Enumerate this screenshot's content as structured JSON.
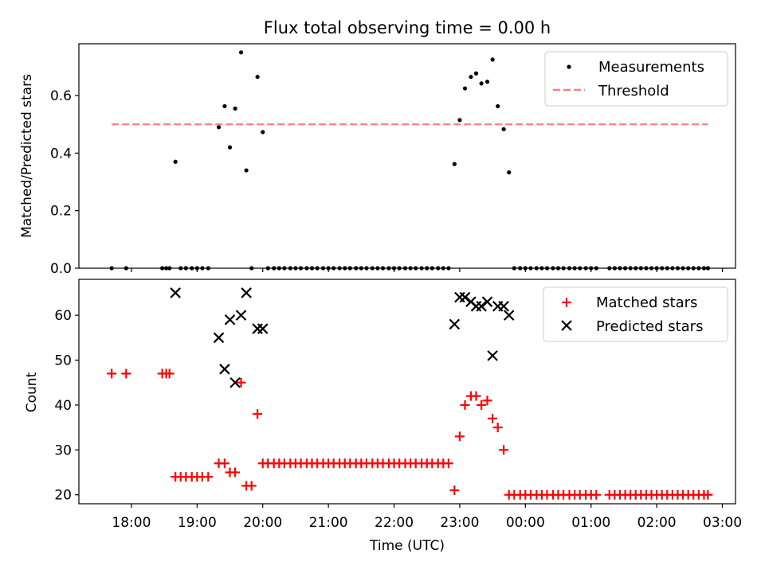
{
  "chart_data": [
    {
      "type": "scatter",
      "title": "Flux total observing time = 0.00 h",
      "xlabel": "",
      "ylabel": "Matched/Predicted stars",
      "ylim": [
        0,
        0.78
      ],
      "yticks": [
        0.0,
        0.2,
        0.4,
        0.6
      ],
      "yticklabels": [
        "0.0",
        "0.2",
        "0.4",
        "0.6"
      ],
      "legend_position": "top-right",
      "series": [
        {
          "name": "Measurements",
          "marker": "dot",
          "color": "#000000",
          "x": [
            17.7,
            17.92,
            18.47,
            18.53,
            18.58,
            18.67,
            18.75,
            18.83,
            18.92,
            19.0,
            19.08,
            19.17,
            19.33,
            19.42,
            19.5,
            19.58,
            19.67,
            19.75,
            19.83,
            19.92,
            20.0,
            20.08,
            20.17,
            20.25,
            20.33,
            20.42,
            20.5,
            20.58,
            20.67,
            20.75,
            20.83,
            20.92,
            21.0,
            21.08,
            21.17,
            21.25,
            21.33,
            21.42,
            21.5,
            21.58,
            21.67,
            21.75,
            21.83,
            21.92,
            22.0,
            22.08,
            22.17,
            22.25,
            22.33,
            22.42,
            22.5,
            22.58,
            22.67,
            22.75,
            22.83,
            22.92,
            23.0,
            23.08,
            23.17,
            23.25,
            23.33,
            23.42,
            23.5,
            23.58,
            23.67,
            23.75,
            23.83,
            23.92,
            24.0,
            24.08,
            24.17,
            24.25,
            24.33,
            24.42,
            24.5,
            24.58,
            24.67,
            24.75,
            24.83,
            24.92,
            25.0,
            25.08,
            25.28,
            25.36,
            25.44,
            25.52,
            25.6,
            25.68,
            25.76,
            25.84,
            25.92,
            26.0,
            26.08,
            26.16,
            26.24,
            26.32,
            26.4,
            26.48,
            26.56,
            26.64,
            26.72,
            26.78
          ],
          "y": [
            0.0,
            0.0,
            0.0,
            0.0,
            0.0,
            0.37,
            0.0,
            0.0,
            0.0,
            0.0,
            0.0,
            0.0,
            0.49,
            0.563,
            0.42,
            0.555,
            0.75,
            0.34,
            0.0,
            0.665,
            0.473,
            0.0,
            0.0,
            0.0,
            0.0,
            0.0,
            0.0,
            0.0,
            0.0,
            0.0,
            0.0,
            0.0,
            0.0,
            0.0,
            0.0,
            0.0,
            0.0,
            0.0,
            0.0,
            0.0,
            0.0,
            0.0,
            0.0,
            0.0,
            0.0,
            0.0,
            0.0,
            0.0,
            0.0,
            0.0,
            0.0,
            0.0,
            0.0,
            0.0,
            0.0,
            0.362,
            0.515,
            0.625,
            0.665,
            0.677,
            0.642,
            0.648,
            0.725,
            0.563,
            0.483,
            0.333,
            0.0,
            0.0,
            0.0,
            0.0,
            0.0,
            0.0,
            0.0,
            0.0,
            0.0,
            0.0,
            0.0,
            0.0,
            0.0,
            0.0,
            0.0,
            0.0,
            0.0,
            0.0,
            0.0,
            0.0,
            0.0,
            0.0,
            0.0,
            0.0,
            0.0,
            0.0,
            0.0,
            0.0,
            0.0,
            0.0,
            0.0,
            0.0,
            0.0,
            0.0,
            0.0,
            0.0
          ]
        },
        {
          "name": "Threshold",
          "marker": "dashed-line",
          "color": "#ff7f7f",
          "x": [
            17.7,
            26.78
          ],
          "y": [
            0.5,
            0.5
          ]
        }
      ]
    },
    {
      "type": "scatter",
      "title": "",
      "xlabel": "Time (UTC)",
      "ylabel": "Count",
      "ylim": [
        18,
        68
      ],
      "yticks": [
        20,
        30,
        40,
        50,
        60
      ],
      "yticklabels": [
        "20",
        "30",
        "40",
        "50",
        "60"
      ],
      "xlim": [
        17.2,
        27.2
      ],
      "xticks": [
        18,
        19,
        20,
        21,
        22,
        23,
        24,
        25,
        26,
        27
      ],
      "xticklabels": [
        "18:00",
        "19:00",
        "20:00",
        "21:00",
        "22:00",
        "23:00",
        "00:00",
        "01:00",
        "02:00",
        "03:00"
      ],
      "legend_position": "top-right",
      "series": [
        {
          "name": "Matched stars",
          "marker": "plus",
          "color": "#ff0000",
          "x": [
            17.7,
            17.92,
            18.47,
            18.53,
            18.58,
            18.67,
            18.75,
            18.83,
            18.92,
            19.0,
            19.08,
            19.17,
            19.33,
            19.42,
            19.5,
            19.58,
            19.67,
            19.75,
            19.83,
            19.92,
            20.0,
            20.08,
            20.17,
            20.25,
            20.33,
            20.42,
            20.5,
            20.58,
            20.67,
            20.75,
            20.83,
            20.92,
            21.0,
            21.08,
            21.17,
            21.25,
            21.33,
            21.42,
            21.5,
            21.58,
            21.67,
            21.75,
            21.83,
            21.92,
            22.0,
            22.08,
            22.17,
            22.25,
            22.33,
            22.42,
            22.5,
            22.58,
            22.67,
            22.75,
            22.83,
            22.92,
            23.0,
            23.08,
            23.17,
            23.25,
            23.33,
            23.42,
            23.5,
            23.58,
            23.67,
            23.75,
            23.83,
            23.92,
            24.0,
            24.08,
            24.17,
            24.25,
            24.33,
            24.42,
            24.5,
            24.58,
            24.67,
            24.75,
            24.83,
            24.92,
            25.0,
            25.08,
            25.28,
            25.36,
            25.44,
            25.52,
            25.6,
            25.68,
            25.76,
            25.84,
            25.92,
            26.0,
            26.08,
            26.16,
            26.24,
            26.32,
            26.4,
            26.48,
            26.56,
            26.64,
            26.72,
            26.78
          ],
          "y": [
            47,
            47,
            47,
            47,
            47,
            24,
            24,
            24,
            24,
            24,
            24,
            24,
            27,
            27,
            25,
            25,
            45,
            22,
            22,
            38,
            27,
            27,
            27,
            27,
            27,
            27,
            27,
            27,
            27,
            27,
            27,
            27,
            27,
            27,
            27,
            27,
            27,
            27,
            27,
            27,
            27,
            27,
            27,
            27,
            27,
            27,
            27,
            27,
            27,
            27,
            27,
            27,
            27,
            27,
            27,
            21,
            33,
            40,
            42,
            42,
            40,
            41,
            37,
            35,
            30,
            20,
            20,
            20,
            20,
            20,
            20,
            20,
            20,
            20,
            20,
            20,
            20,
            20,
            20,
            20,
            20,
            20,
            20,
            20,
            20,
            20,
            20,
            20,
            20,
            20,
            20,
            20,
            20,
            20,
            20,
            20,
            20,
            20,
            20,
            20,
            20,
            20
          ]
        },
        {
          "name": "Predicted stars",
          "marker": "x",
          "color": "#000000",
          "x": [
            18.67,
            19.33,
            19.42,
            19.5,
            19.58,
            19.67,
            19.75,
            19.92,
            20.0,
            22.92,
            23.0,
            23.08,
            23.17,
            23.25,
            23.33,
            23.42,
            23.5,
            23.58,
            23.67,
            23.75
          ],
          "y": [
            65,
            55,
            48,
            59,
            45,
            60,
            65,
            57,
            57,
            58,
            64,
            64,
            63,
            62,
            62,
            63,
            51,
            62,
            62,
            60
          ]
        }
      ]
    }
  ]
}
